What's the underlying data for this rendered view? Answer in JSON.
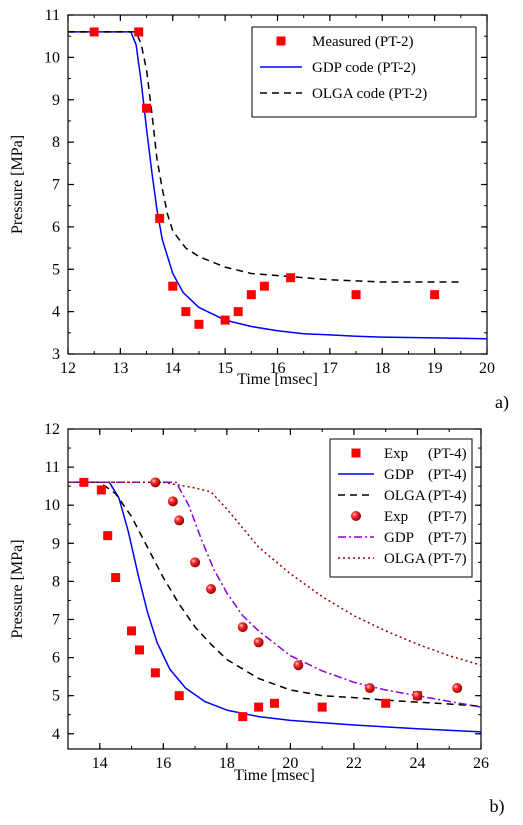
{
  "chart_data": [
    {
      "type": "line",
      "panel_label": "a)",
      "xlabel": "Time [msec]",
      "ylabel": "Pressure [MPa]",
      "xlim": [
        12,
        20
      ],
      "ylim": [
        3,
        11
      ],
      "xticks": [
        "12",
        "13",
        "14",
        "15",
        "16",
        "17",
        "18",
        "19",
        "20"
      ],
      "yticks": [
        "3",
        "4",
        "5",
        "6",
        "7",
        "8",
        "9",
        "10",
        "11"
      ],
      "grid": false,
      "legend_position": "top-right",
      "series": [
        {
          "name": "Measured (PT-2)",
          "kind": "square",
          "color": "#ff0000",
          "x": [
            12.5,
            13.35,
            13.5,
            13.75,
            14.0,
            14.25,
            14.5,
            15.0,
            15.25,
            15.5,
            15.75,
            16.25,
            17.5,
            19.0
          ],
          "y": [
            10.6,
            10.6,
            8.8,
            6.2,
            4.6,
            4.0,
            3.7,
            3.8,
            4.0,
            4.4,
            4.6,
            4.8,
            4.4,
            4.4
          ]
        },
        {
          "name": "GDP code (PT-2)",
          "kind": "line",
          "color": "#0000ff",
          "dash": "solid",
          "x": [
            12.0,
            13.2,
            13.3,
            13.4,
            13.5,
            13.6,
            13.7,
            13.8,
            14.0,
            14.2,
            14.5,
            15.0,
            15.5,
            16.0,
            16.5,
            17.0,
            17.5,
            18.0,
            19.0,
            20.0
          ],
          "y": [
            10.6,
            10.6,
            10.3,
            9.4,
            8.3,
            7.3,
            6.4,
            5.7,
            4.9,
            4.45,
            4.1,
            3.8,
            3.65,
            3.55,
            3.48,
            3.45,
            3.42,
            3.4,
            3.38,
            3.36
          ]
        },
        {
          "name": "OLGA code (PT-2)",
          "kind": "line",
          "color": "#000000",
          "dash": "dashed",
          "x": [
            12.0,
            13.3,
            13.4,
            13.5,
            13.6,
            13.7,
            13.8,
            13.9,
            14.0,
            14.25,
            14.5,
            15.0,
            15.5,
            16.0,
            16.5,
            17.0,
            18.0,
            19.0,
            19.5
          ],
          "y": [
            10.6,
            10.6,
            10.3,
            9.7,
            8.7,
            7.6,
            6.9,
            6.3,
            5.9,
            5.5,
            5.3,
            5.05,
            4.9,
            4.85,
            4.8,
            4.75,
            4.7,
            4.7,
            4.7
          ]
        }
      ]
    },
    {
      "type": "line",
      "panel_label": "b)",
      "xlabel": "Time [msec]",
      "ylabel": "Pressure [MPa]",
      "xlim": [
        13,
        26
      ],
      "ylim": [
        3.6,
        12
      ],
      "xticks": [
        "14",
        "16",
        "18",
        "20",
        "22",
        "24",
        "26"
      ],
      "yticks": [
        "4",
        "5",
        "6",
        "7",
        "8",
        "9",
        "10",
        "11",
        "12"
      ],
      "grid": false,
      "legend_position": "top-right",
      "series": [
        {
          "name": "Exp",
          "tag": "(PT-4)",
          "kind": "square",
          "color": "#ff0000",
          "x": [
            13.5,
            14.05,
            14.25,
            14.5,
            15.0,
            15.25,
            15.75,
            16.5,
            18.5,
            19.0,
            19.5,
            21.0,
            23.0,
            24.0
          ],
          "y": [
            10.6,
            10.4,
            9.2,
            8.1,
            6.7,
            6.2,
            5.6,
            5.0,
            4.45,
            4.7,
            4.8,
            4.7,
            4.8,
            5.0
          ]
        },
        {
          "name": "GDP",
          "tag": "(PT-4)",
          "kind": "line",
          "color": "#0000ff",
          "dash": "solid",
          "x": [
            13.0,
            14.3,
            14.6,
            14.9,
            15.2,
            15.5,
            15.8,
            16.2,
            16.7,
            17.3,
            18.0,
            19.0,
            20.0,
            22.0,
            24.0,
            26.0
          ],
          "y": [
            10.6,
            10.6,
            10.2,
            9.3,
            8.2,
            7.2,
            6.4,
            5.7,
            5.2,
            4.85,
            4.62,
            4.45,
            4.35,
            4.23,
            4.13,
            4.05
          ]
        },
        {
          "name": "OLGA",
          "tag": "(PT-4)",
          "kind": "line",
          "color": "#000000",
          "dash": "dashed",
          "x": [
            13.0,
            14.0,
            14.5,
            15.0,
            15.5,
            16.0,
            16.5,
            17.0,
            17.5,
            18.0,
            19.0,
            20.0,
            21.0,
            22.0,
            23.0,
            24.0,
            25.0,
            26.0
          ],
          "y": [
            10.6,
            10.6,
            10.3,
            9.7,
            8.9,
            8.1,
            7.4,
            6.8,
            6.35,
            5.95,
            5.45,
            5.15,
            5.0,
            4.95,
            4.88,
            4.83,
            4.78,
            4.72
          ]
        },
        {
          "name": "Exp",
          "tag": "(PT-7)",
          "kind": "sphere",
          "color": "#ff0000",
          "x": [
            15.75,
            16.3,
            16.5,
            17.0,
            17.5,
            18.5,
            19.0,
            20.25,
            22.5,
            24.0,
            25.25
          ],
          "y": [
            10.6,
            10.1,
            9.6,
            8.5,
            7.8,
            6.8,
            6.4,
            5.8,
            5.2,
            5.0,
            5.2
          ]
        },
        {
          "name": "GDP",
          "tag": "(PT-7)",
          "kind": "line",
          "color": "#8800dd",
          "dash": "dashdot",
          "x": [
            13.0,
            16.4,
            16.8,
            17.2,
            17.6,
            18.0,
            18.5,
            19.0,
            20.0,
            21.0,
            22.0,
            23.0,
            24.0,
            25.0,
            26.0
          ],
          "y": [
            10.6,
            10.6,
            10.0,
            9.1,
            8.3,
            7.7,
            7.1,
            6.7,
            6.05,
            5.65,
            5.35,
            5.15,
            5.0,
            4.85,
            4.7
          ]
        },
        {
          "name": "OLGA",
          "tag": "(PT-7)",
          "kind": "line",
          "color": "#990000",
          "dash": "dotted",
          "x": [
            13.0,
            16.0,
            17.0,
            17.5,
            18.0,
            18.5,
            19.0,
            20.0,
            21.0,
            22.0,
            23.0,
            24.0,
            25.0,
            26.0
          ],
          "y": [
            10.6,
            10.6,
            10.45,
            10.35,
            9.9,
            9.4,
            8.9,
            8.2,
            7.6,
            7.1,
            6.7,
            6.35,
            6.05,
            5.8
          ]
        }
      ]
    }
  ]
}
